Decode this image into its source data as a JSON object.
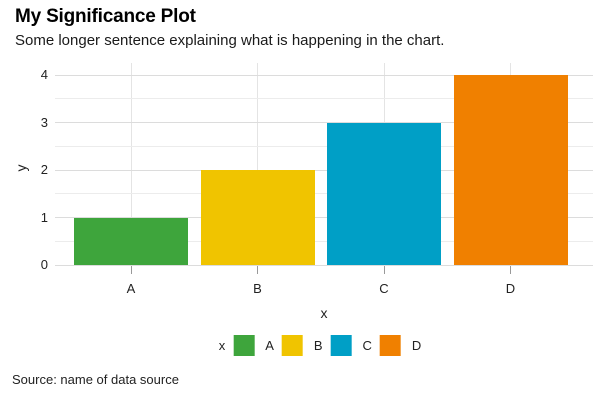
{
  "chart_data": {
    "type": "bar",
    "title": "My Significance Plot",
    "subtitle": "Some longer sentence explaining what is happening in the chart.",
    "categories": [
      "A",
      "B",
      "C",
      "D"
    ],
    "values": [
      1,
      2,
      3,
      4
    ],
    "colors": [
      "#3EA53C",
      "#F0C400",
      "#009FC6",
      "#F08000"
    ],
    "xlabel": "x",
    "ylabel": "y",
    "ylim": [
      0,
      4
    ],
    "yticks": [
      0,
      1,
      2,
      3,
      4
    ],
    "yticks_minor": [
      0.5,
      1.5,
      2.5,
      3.5
    ],
    "grid": "on",
    "legend": {
      "title": "x",
      "entries": [
        "A",
        "B",
        "C",
        "D"
      ],
      "position": "bottom"
    }
  },
  "footer": {
    "source_text": "Source: name of data source"
  }
}
